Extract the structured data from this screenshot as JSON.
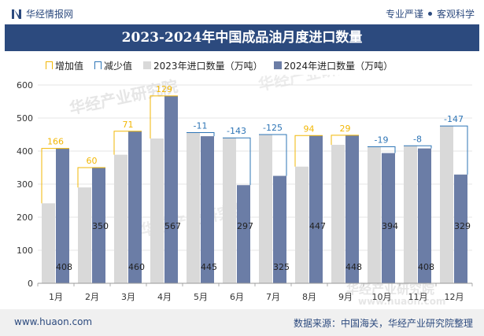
{
  "header": {
    "brand": "华经情报网",
    "right_text_1": "专业严谨",
    "right_text_2": "客观科学"
  },
  "title": "2023-2024年中国成品油月度进口数量",
  "legend": {
    "increase": "增加值",
    "decrease": "减少值",
    "series_2023": "2023年进口数量（万吨）",
    "series_2024": "2024年进口数量（万吨）"
  },
  "footer": {
    "website": "www.huaon.com",
    "source": "数据来源：中国海关，华经产业研究院整理"
  },
  "colors": {
    "brand": "#2c4a7e",
    "series_2023": "#d9d9d9",
    "series_2024": "#6b7da6",
    "increase": "#f2b705",
    "decrease": "#2e75b6"
  },
  "chart_data": {
    "type": "bar",
    "categories": [
      "1月",
      "2月",
      "3月",
      "4月",
      "5月",
      "6月",
      "7月",
      "8月",
      "9月",
      "10月",
      "11月",
      "12月"
    ],
    "ylim": [
      0,
      600
    ],
    "yticks": [
      0,
      100,
      200,
      300,
      400,
      500,
      600
    ],
    "series": [
      {
        "name": "2023年进口数量（万吨）",
        "values": [
          242,
          290,
          389,
          438,
          456,
          440,
          450,
          353,
          419,
          413,
          416,
          476
        ]
      },
      {
        "name": "2024年进口数量（万吨）",
        "values": [
          408,
          350,
          460,
          567,
          445,
          297,
          325,
          447,
          448,
          394,
          408,
          329
        ]
      }
    ],
    "change": [
      166,
      60,
      71,
      129,
      -11,
      -143,
      -125,
      94,
      29,
      -19,
      -8,
      -147
    ],
    "watermark": "华经产业研究院",
    "watermark_url": "www.huaon.com"
  }
}
